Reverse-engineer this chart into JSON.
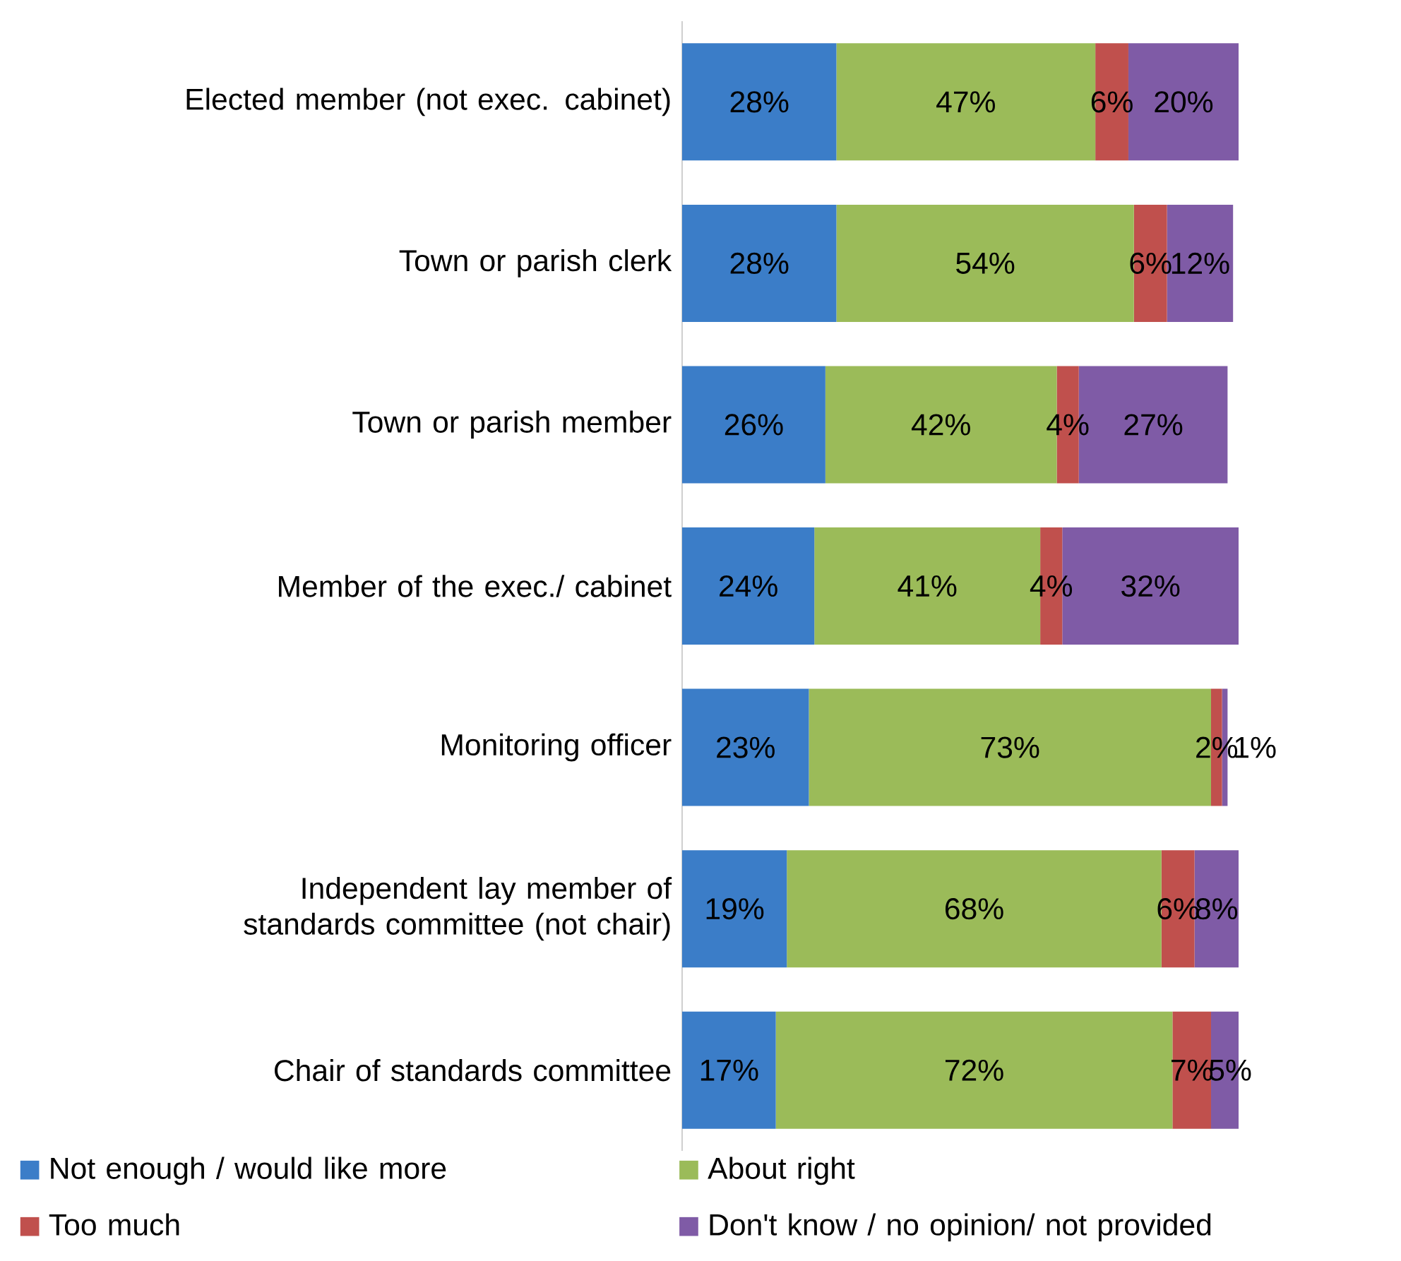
{
  "chart_data": {
    "type": "bar",
    "orientation": "horizontal",
    "stacked": true,
    "legend": "bottom",
    "categories": [
      "Elected member (not exec. cabinet)",
      "Town or parish clerk",
      "Town or parish member",
      "Member of the exec./ cabinet",
      "Monitoring officer",
      "Independent lay member of standards committee (not chair)",
      "Chair of standards committee"
    ],
    "series": [
      {
        "name": "Not enough / would like more",
        "color": "#3b7dc8",
        "values": [
          28,
          28,
          26,
          24,
          23,
          19,
          17
        ],
        "value_labels": [
          "28%",
          "28%",
          "26%",
          "24%",
          "23%",
          "19%",
          "17%"
        ]
      },
      {
        "name": "About right",
        "color": "#9bbb59",
        "values": [
          47,
          54,
          42,
          41,
          73,
          68,
          72
        ],
        "value_labels": [
          "47%",
          "54%",
          "42%",
          "41%",
          "73%",
          "68%",
          "72%"
        ]
      },
      {
        "name": "Too much",
        "color": "#c0504d",
        "values": [
          6,
          6,
          4,
          4,
          2,
          6,
          7
        ],
        "value_labels": [
          "6%",
          "6%",
          "4%",
          "4%",
          "2%",
          "6%",
          "7%"
        ]
      },
      {
        "name": "Don't know / no opinion/ not provided",
        "color": "#7f5ba6",
        "values": [
          20,
          12,
          27,
          32,
          1,
          8,
          5
        ],
        "value_labels": [
          "20%",
          "12%",
          "27%",
          "32%",
          "1%",
          "8%",
          "5%"
        ]
      }
    ]
  }
}
